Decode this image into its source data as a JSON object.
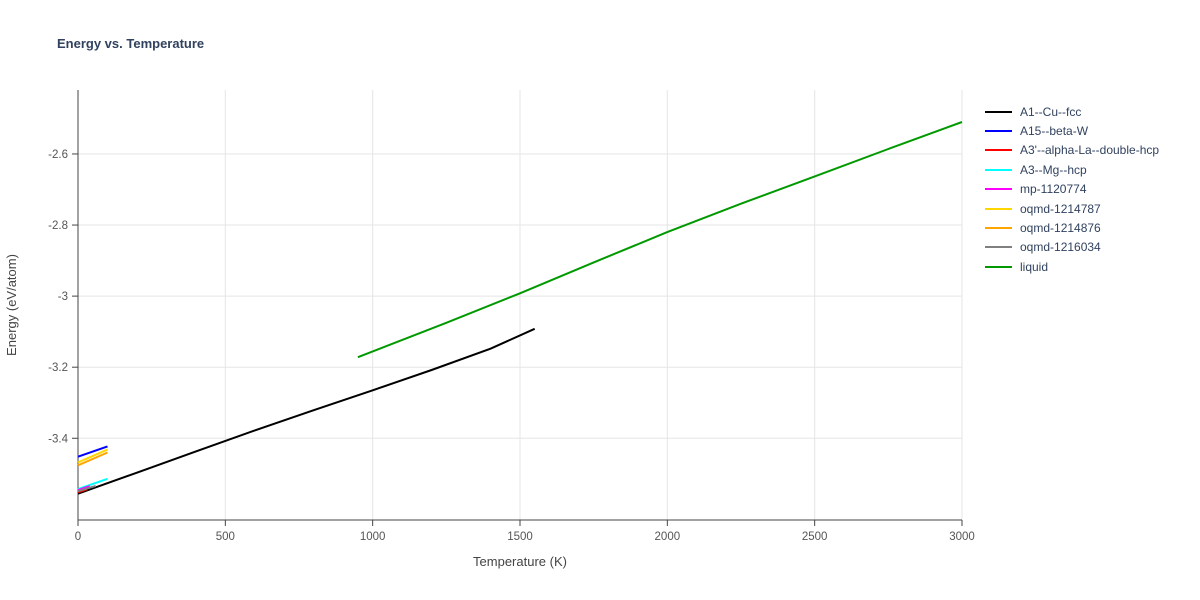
{
  "title": "Energy vs. Temperature",
  "chart_data": {
    "type": "line",
    "title": "Energy vs. Temperature",
    "xlabel": "Temperature (K)",
    "ylabel": "Energy (eV/atom)",
    "xlim": [
      0,
      3000
    ],
    "ylim": [
      -3.63,
      -2.42
    ],
    "xticks": [
      0,
      500,
      1000,
      1500,
      2000,
      2500,
      3000
    ],
    "xtick_labels": [
      "0",
      "500",
      "1000",
      "1500",
      "2000",
      "2500",
      "3000"
    ],
    "yticks": [
      -3.4,
      -3.2,
      -3.0,
      -2.8,
      -2.6
    ],
    "ytick_labels": [
      "-3.4",
      "-3.2",
      "-3",
      "-2.8",
      "-2.6"
    ],
    "grid": true,
    "legend_position": "right-outside-top",
    "series": [
      {
        "name": "A1--Cu--fcc",
        "color": "#000000",
        "points": [
          [
            0,
            -3.556
          ],
          [
            200,
            -3.497
          ],
          [
            400,
            -3.437
          ],
          [
            600,
            -3.378
          ],
          [
            800,
            -3.321
          ],
          [
            1000,
            -3.265
          ],
          [
            1200,
            -3.208
          ],
          [
            1400,
            -3.148
          ],
          [
            1550,
            -3.092
          ]
        ]
      },
      {
        "name": "A15--beta-W",
        "color": "#0000ff",
        "points": [
          [
            0,
            -3.452
          ],
          [
            100,
            -3.423
          ]
        ]
      },
      {
        "name": "A3'--alpha-La--double-hcp",
        "color": "#ff0000",
        "points": [
          [
            0,
            -3.552
          ],
          [
            30,
            -3.544
          ]
        ]
      },
      {
        "name": "A3--Mg--hcp",
        "color": "#00ffff",
        "points": [
          [
            0,
            -3.543
          ],
          [
            100,
            -3.514
          ]
        ]
      },
      {
        "name": "mp-1120774",
        "color": "#ff00ff",
        "points": [
          [
            0,
            -3.546
          ],
          [
            40,
            -3.535
          ]
        ]
      },
      {
        "name": "oqmd-1214787",
        "color": "#ffd700",
        "points": [
          [
            0,
            -3.468
          ],
          [
            100,
            -3.432
          ]
        ]
      },
      {
        "name": "oqmd-1214876",
        "color": "#ffa500",
        "points": [
          [
            0,
            -3.476
          ],
          [
            100,
            -3.44
          ]
        ]
      },
      {
        "name": "oqmd-1216034",
        "color": "#808080",
        "points": [
          [
            0,
            -3.549
          ],
          [
            60,
            -3.534
          ]
        ]
      },
      {
        "name": "liquid",
        "color": "#009900",
        "points": [
          [
            950,
            -3.172
          ],
          [
            1250,
            -3.075
          ],
          [
            1500,
            -2.992
          ],
          [
            1750,
            -2.905
          ],
          [
            2000,
            -2.82
          ],
          [
            2250,
            -2.74
          ],
          [
            2500,
            -2.663
          ],
          [
            2750,
            -2.586
          ],
          [
            3000,
            -2.51
          ]
        ]
      }
    ]
  },
  "style": {
    "background": "#ffffff",
    "title_color": "#31425f",
    "legend_text_color": "#31425f",
    "tick_label_color": "#555555",
    "axis_label_color": "#444444",
    "grid_color": "#e5e5e5",
    "axis_color": "#444444"
  }
}
